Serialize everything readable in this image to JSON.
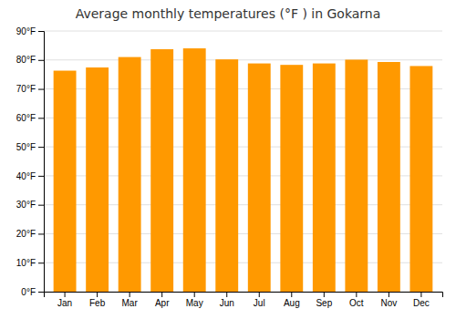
{
  "chart_data": {
    "type": "bar",
    "title": "Average monthly temperatures (°F ) in Gokarna",
    "categories": [
      "Jan",
      "Feb",
      "Mar",
      "Apr",
      "May",
      "Jun",
      "Jul",
      "Aug",
      "Sep",
      "Oct",
      "Nov",
      "Dec"
    ],
    "values": [
      76.3,
      77.4,
      81.0,
      83.7,
      84.0,
      80.2,
      78.8,
      78.3,
      78.8,
      80.1,
      79.3,
      77.9
    ],
    "color": "#FF9900",
    "ylim": [
      0,
      90
    ],
    "yticks": [
      {
        "value": 0,
        "label": "0°F"
      },
      {
        "value": 10,
        "label": "10°F"
      },
      {
        "value": 20,
        "label": "20°F"
      },
      {
        "value": 30,
        "label": "30°F"
      },
      {
        "value": 40,
        "label": "40°F"
      },
      {
        "value": 50,
        "label": "50°F"
      },
      {
        "value": 60,
        "label": "60°F"
      },
      {
        "value": 70,
        "label": "70°F"
      },
      {
        "value": 80,
        "label": "80°F"
      },
      {
        "value": 90,
        "label": "90°F"
      }
    ],
    "grid": true
  }
}
